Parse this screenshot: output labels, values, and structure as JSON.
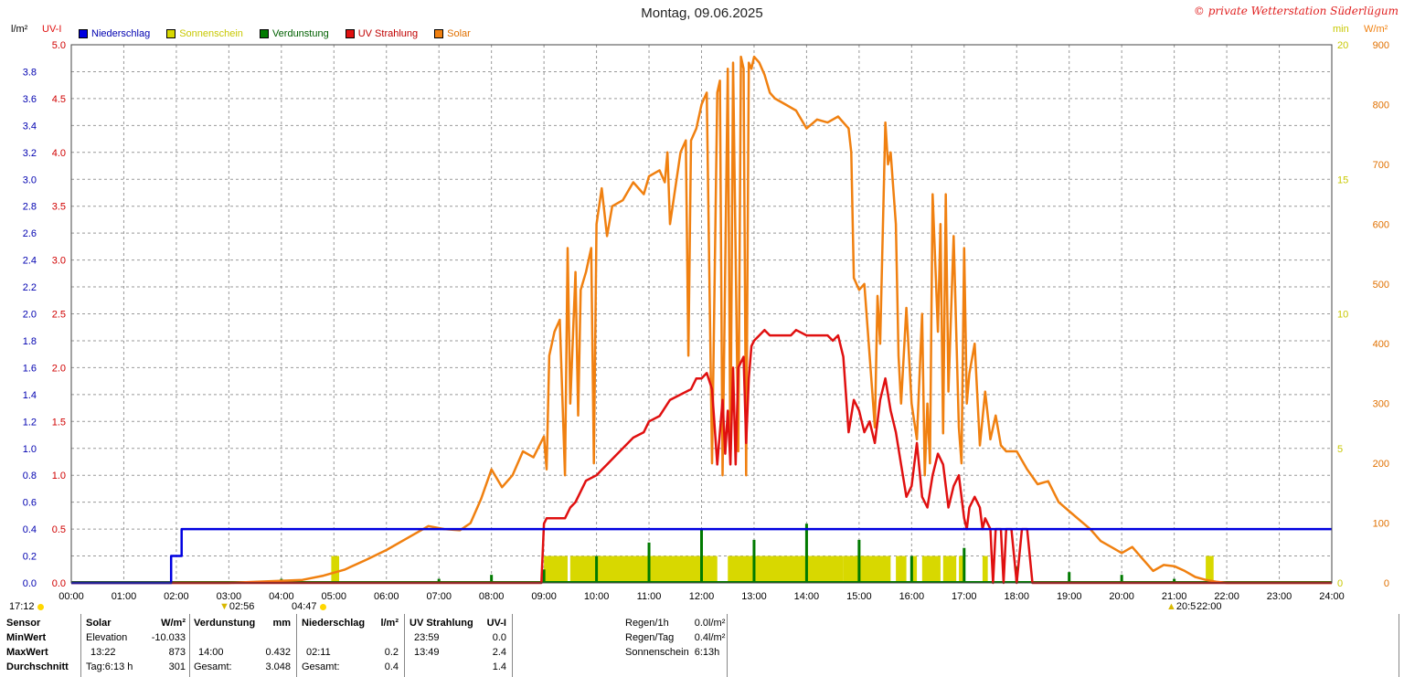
{
  "header": {
    "title": "Montag, 09.06.2025",
    "copyright": "© private Wetterstation Süderlügum",
    "unit_left1": "l/m²",
    "unit_left2": "UV-I",
    "unit_right1": "min",
    "unit_right2": "W/m²"
  },
  "colors": {
    "rain": "#0000e0",
    "sunshine": "#d8d800",
    "evaporation": "#007a00",
    "uv": "#e01010",
    "solar": "#f08010"
  },
  "legend": [
    {
      "label": "Niederschlag",
      "color": "#0000e0"
    },
    {
      "label": "Sonnenschein",
      "color": "#d8d800"
    },
    {
      "label": "Verdunstung",
      "color": "#007a00"
    },
    {
      "label": "UV Strahlung",
      "color": "#e01010"
    },
    {
      "label": "Solar",
      "color": "#f08010"
    }
  ],
  "chart_data": {
    "type": "line",
    "title": "Montag, 09.06.2025",
    "x_ticks": [
      "00:00",
      "01:00",
      "02:00",
      "03:00",
      "04:00",
      "05:00",
      "06:00",
      "07:00",
      "08:00",
      "09:00",
      "10:00",
      "11:00",
      "12:00",
      "13:00",
      "14:00",
      "15:00",
      "16:00",
      "17:00",
      "18:00",
      "19:00",
      "20:00",
      "21:00",
      "22:00",
      "23:00",
      "24:00"
    ],
    "axis_rain": {
      "label": "l/m²",
      "min": 0,
      "max": 4.0,
      "ticks": [
        "0.0",
        "0.2",
        "0.4",
        "0.6",
        "0.8",
        "1.0",
        "1.2",
        "1.4",
        "1.6",
        "1.8",
        "2.0",
        "2.2",
        "2.4",
        "2.6",
        "2.8",
        "3.0",
        "3.2",
        "3.4",
        "3.6",
        "3.8"
      ]
    },
    "axis_uv": {
      "label": "UV-I",
      "min": 0,
      "max": 5.0,
      "ticks": [
        "0.0",
        "0.5",
        "1.0",
        "1.5",
        "2.0",
        "2.5",
        "3.0",
        "3.5",
        "4.0",
        "4.5",
        "5.0"
      ]
    },
    "axis_sun": {
      "label": "min",
      "min": 0,
      "max": 20,
      "ticks": [
        "0",
        "5",
        "10",
        "15",
        "20"
      ]
    },
    "axis_solar": {
      "label": "W/m²",
      "min": 0,
      "max": 900,
      "ticks": [
        "0",
        "100",
        "200",
        "300",
        "400",
        "500",
        "600",
        "700",
        "800",
        "900"
      ]
    },
    "grid": true,
    "legend_position": "top-left",
    "series": [
      {
        "name": "Niederschlag",
        "axis": "rain",
        "x": [
          0,
          1.9,
          1.9,
          2.1,
          2.1,
          24
        ],
        "y": [
          0,
          0,
          0.2,
          0.2,
          0.4,
          0.4
        ]
      },
      {
        "name": "Solar",
        "axis": "solar",
        "x": [
          0,
          3.0,
          4.4,
          4.8,
          5.2,
          5.6,
          6.0,
          6.4,
          6.8,
          7.1,
          7.4,
          7.6,
          7.8,
          8.0,
          8.2,
          8.4,
          8.6,
          8.8,
          9.0,
          9.05,
          9.1,
          9.2,
          9.3,
          9.4,
          9.45,
          9.5,
          9.6,
          9.65,
          9.7,
          9.8,
          9.9,
          9.95,
          10.0,
          10.1,
          10.2,
          10.3,
          10.5,
          10.7,
          10.9,
          11.0,
          11.2,
          11.3,
          11.35,
          11.4,
          11.6,
          11.7,
          11.75,
          11.8,
          11.9,
          12.0,
          12.1,
          12.2,
          12.3,
          12.35,
          12.4,
          12.5,
          12.55,
          12.6,
          12.7,
          12.75,
          12.8,
          12.85,
          12.9,
          12.95,
          13.0,
          13.1,
          13.2,
          13.3,
          13.4,
          13.6,
          13.8,
          14.0,
          14.2,
          14.4,
          14.6,
          14.7,
          14.8,
          14.85,
          14.9,
          15.0,
          15.1,
          15.2,
          15.3,
          15.35,
          15.4,
          15.5,
          15.55,
          15.6,
          15.7,
          15.75,
          15.8,
          15.9,
          16.0,
          16.1,
          16.2,
          16.25,
          16.3,
          16.35,
          16.4,
          16.5,
          16.55,
          16.6,
          16.65,
          16.7,
          16.8,
          16.9,
          16.95,
          17.0,
          17.05,
          17.1,
          17.2,
          17.3,
          17.4,
          17.5,
          17.6,
          17.7,
          17.8,
          18.0,
          18.2,
          18.4,
          18.6,
          18.8,
          19.0,
          19.2,
          19.4,
          19.6,
          19.8,
          20.0,
          20.2,
          20.4,
          20.6,
          20.8,
          21.0,
          21.2,
          21.4,
          21.6,
          21.8,
          22.0,
          22.2,
          22.4,
          22.6,
          23.0,
          24.0
        ],
        "y": [
          0,
          0,
          5,
          12,
          22,
          38,
          55,
          75,
          95,
          90,
          88,
          100,
          140,
          190,
          160,
          180,
          220,
          210,
          245,
          190,
          380,
          420,
          440,
          180,
          560,
          300,
          520,
          280,
          490,
          520,
          560,
          200,
          600,
          660,
          580,
          630,
          640,
          670,
          650,
          680,
          690,
          670,
          720,
          600,
          720,
          740,
          380,
          740,
          760,
          800,
          820,
          200,
          820,
          840,
          180,
          860,
          200,
          870,
          220,
          880,
          860,
          180,
          870,
          860,
          880,
          870,
          850,
          820,
          810,
          800,
          790,
          760,
          775,
          770,
          780,
          770,
          760,
          720,
          510,
          490,
          500,
          380,
          260,
          480,
          400,
          770,
          700,
          720,
          600,
          380,
          300,
          460,
          300,
          240,
          450,
          180,
          300,
          200,
          650,
          420,
          600,
          250,
          650,
          320,
          580,
          260,
          200,
          560,
          300,
          350,
          400,
          230,
          320,
          240,
          280,
          230,
          220,
          220,
          190,
          165,
          170,
          135,
          120,
          105,
          90,
          70,
          60,
          50,
          60,
          40,
          20,
          30,
          28,
          20,
          10,
          5,
          2,
          0,
          0,
          0,
          0,
          0,
          0
        ]
      },
      {
        "name": "UV Strahlung",
        "axis": "uv",
        "x": [
          0,
          8.95,
          9.0,
          9.05,
          9.4,
          9.5,
          9.6,
          9.7,
          9.8,
          10.0,
          10.1,
          10.2,
          10.3,
          10.5,
          10.7,
          10.9,
          11.0,
          11.2,
          11.4,
          11.6,
          11.8,
          11.9,
          12.0,
          12.1,
          12.2,
          12.3,
          12.4,
          12.45,
          12.5,
          12.55,
          12.6,
          12.65,
          12.7,
          12.8,
          12.85,
          12.9,
          12.95,
          13.0,
          13.1,
          13.2,
          13.3,
          13.5,
          13.7,
          13.8,
          14.0,
          14.2,
          14.4,
          14.5,
          14.6,
          14.7,
          14.8,
          14.9,
          15.0,
          15.1,
          15.2,
          15.3,
          15.4,
          15.5,
          15.6,
          15.7,
          15.8,
          15.9,
          16.0,
          16.1,
          16.2,
          16.3,
          16.4,
          16.5,
          16.6,
          16.7,
          16.8,
          16.9,
          17.0,
          17.05,
          17.1,
          17.2,
          17.3,
          17.35,
          17.4,
          17.5,
          17.55,
          17.6,
          17.7,
          17.75,
          17.8,
          17.9,
          18.0,
          18.1,
          18.2,
          18.3,
          18.35,
          24.0
        ],
        "y": [
          0,
          0,
          0.55,
          0.6,
          0.6,
          0.7,
          0.75,
          0.85,
          0.95,
          1.0,
          1.05,
          1.1,
          1.15,
          1.25,
          1.35,
          1.4,
          1.5,
          1.55,
          1.7,
          1.75,
          1.8,
          1.9,
          1.9,
          1.95,
          1.8,
          1.1,
          1.7,
          1.2,
          1.6,
          1.1,
          2.0,
          1.1,
          2.0,
          2.1,
          1.3,
          1.9,
          2.2,
          2.25,
          2.3,
          2.35,
          2.3,
          2.3,
          2.3,
          2.35,
          2.3,
          2.3,
          2.3,
          2.25,
          2.3,
          2.1,
          1.4,
          1.7,
          1.6,
          1.4,
          1.5,
          1.3,
          1.7,
          1.9,
          1.6,
          1.4,
          1.1,
          0.8,
          0.9,
          1.3,
          0.8,
          0.7,
          1.0,
          1.2,
          1.1,
          0.7,
          0.9,
          1.0,
          0.6,
          0.5,
          0.7,
          0.8,
          0.7,
          0.5,
          0.6,
          0.5,
          0.0,
          0.5,
          0.5,
          0.0,
          0.5,
          0.5,
          0.0,
          0.5,
          0.5,
          0.0,
          0.0,
          0.0
        ]
      },
      {
        "name": "Sonnenschein",
        "axis": "sun",
        "bars": [
          [
            4.95,
            5.1,
            1
          ],
          [
            9.0,
            9.45,
            1
          ],
          [
            9.5,
            12.3,
            1
          ],
          [
            12.5,
            14.7,
            1
          ],
          [
            14.7,
            15.6,
            1
          ],
          [
            15.7,
            15.9,
            1
          ],
          [
            16.0,
            16.1,
            1
          ],
          [
            16.2,
            16.55,
            1
          ],
          [
            16.6,
            16.85,
            1
          ],
          [
            16.9,
            17.0,
            1
          ],
          [
            17.35,
            17.45,
            1
          ],
          [
            21.6,
            21.75,
            1
          ]
        ]
      },
      {
        "name": "Verdunstung",
        "axis": "sun",
        "bars": [
          [
            4.0,
            0.15
          ],
          [
            7.0,
            0.15
          ],
          [
            8.0,
            0.3
          ],
          [
            9.0,
            0.5
          ],
          [
            10.0,
            1.0
          ],
          [
            11.0,
            1.5
          ],
          [
            12.0,
            2.0
          ],
          [
            13.0,
            1.6
          ],
          [
            14.0,
            2.2
          ],
          [
            15.0,
            1.6
          ],
          [
            16.0,
            1.0
          ],
          [
            17.0,
            1.3
          ],
          [
            18.0,
            0.6
          ],
          [
            19.0,
            0.4
          ],
          [
            20.0,
            0.3
          ],
          [
            21.0,
            0.15
          ]
        ]
      }
    ]
  },
  "sun_times": {
    "left_top": "17:12",
    "sunset_a": "02:56",
    "sunrise": "04:47",
    "sunset": "20:5",
    "right_label": "22:00"
  },
  "stats": {
    "col1": {
      "h0": "Sensor",
      "r1": "MinWert",
      "r2": "MaxWert",
      "r3": "Durchschnitt"
    },
    "solar": {
      "h": "Solar",
      "hu": "W/m²",
      "r1a": "Elevation",
      "r1b": "-10.033",
      "r2a": "13:22",
      "r2b": "873",
      "r3a": "Tag:6:13 h",
      "r3b": "301"
    },
    "evap": {
      "h": "Verdunstung",
      "hu": "mm",
      "r2a": "14:00",
      "r2b": "0.432",
      "r3a": "Gesamt:",
      "r3b": "3.048"
    },
    "rain": {
      "h": "Niederschlag",
      "hu": "l/m²",
      "r2a": "02:11",
      "r2b": "0.2",
      "r3a": "Gesamt:",
      "r3b": "0.4"
    },
    "uv": {
      "h": "UV Strahlung",
      "hu": "UV-I",
      "r1a": "23:59",
      "r1b": "0.0",
      "r2a": "13:49",
      "r2b": "2.4",
      "r3b": "1.4"
    },
    "summary": {
      "l1": "Regen/1h",
      "v1": "0.0l/m²",
      "l2": "Regen/Tag",
      "v2": "0.4l/m²",
      "l3": "Sonnenschein",
      "v3": "6:13h"
    }
  }
}
